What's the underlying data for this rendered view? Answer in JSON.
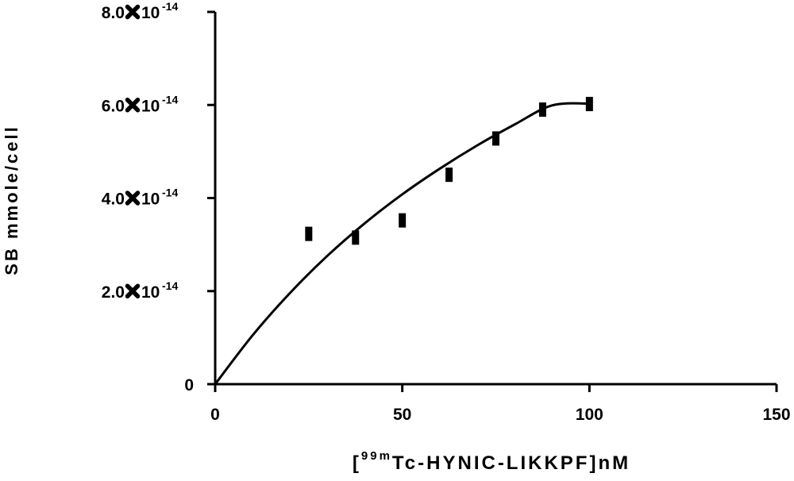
{
  "chart_data": {
    "type": "scatter",
    "title": "",
    "xlabel_parts": {
      "open": "[",
      "superscript": "99m",
      "rest": "Tc-HYNIC-LIKKPF]nM"
    },
    "ylabel": "SB mmole/cell",
    "xlim": [
      0,
      150
    ],
    "ylim": [
      0,
      8e-14
    ],
    "x_ticks": [
      0,
      50,
      100,
      150
    ],
    "x_tick_labels": [
      "0",
      "50",
      "100",
      "150"
    ],
    "y_ticks": [
      0,
      2e-14,
      4e-14,
      6e-14,
      8e-14
    ],
    "y_tick_labels": [
      {
        "value": 0,
        "mantissa": "0",
        "base": "",
        "exponent": ""
      },
      {
        "value": 2e-14,
        "mantissa": "2.0",
        "base": "10",
        "exponent": "-14"
      },
      {
        "value": 4e-14,
        "mantissa": "4.0",
        "base": "10",
        "exponent": "-14"
      },
      {
        "value": 6e-14,
        "mantissa": "6.0",
        "base": "10",
        "exponent": "-14"
      },
      {
        "value": 8e-14,
        "mantissa": "8.0",
        "base": "10",
        "exponent": "-14"
      }
    ],
    "grid": false,
    "legend": "none",
    "series": [
      {
        "kind": "points",
        "marker": "bar",
        "color": "#000000",
        "x": [
          25,
          37.5,
          50,
          62.5,
          75,
          87.5,
          100
        ],
        "y": [
          3.23e-14,
          3.15e-14,
          3.52e-14,
          4.5e-14,
          5.28e-14,
          5.9e-14,
          6.02e-14
        ]
      },
      {
        "kind": "fit",
        "color": "#000000",
        "model": "one-site saturation binding",
        "x": [
          0,
          10,
          20,
          30,
          40,
          50,
          60,
          70,
          80,
          90,
          100
        ],
        "y": [
          0,
          1.05e-14,
          1.96e-14,
          2.76e-14,
          3.46e-14,
          4.08e-14,
          4.63e-14,
          5.13e-14,
          5.58e-14,
          5.99e-14,
          6.03e-14
        ]
      }
    ]
  }
}
